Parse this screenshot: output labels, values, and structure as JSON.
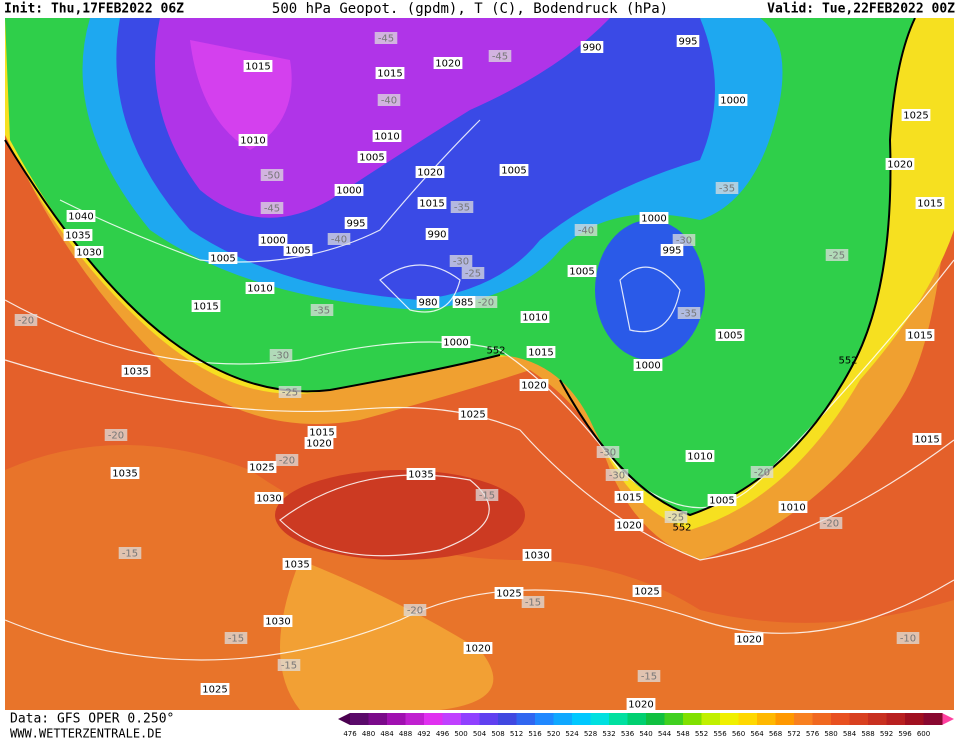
{
  "header": {
    "init": "Init: Thu,17FEB2022 06Z",
    "title": "500 hPa Geopot. (gpdm), T (C), Bodendruck (hPa)",
    "valid": "Valid: Tue,22FEB2022 00Z"
  },
  "footer": {
    "data_source": "Data: GFS OPER 0.250°",
    "website": "WWW.WETTERZENTRALE.DE"
  },
  "colorbar": {
    "levels": [
      "476",
      "480",
      "484",
      "488",
      "492",
      "496",
      "500",
      "504",
      "508",
      "512",
      "516",
      "520",
      "524",
      "528",
      "532",
      "536",
      "540",
      "544",
      "548",
      "552",
      "556",
      "560",
      "564",
      "568",
      "572",
      "576",
      "580",
      "584",
      "588",
      "592",
      "596",
      "600"
    ]
  },
  "map": {
    "pressure_labels": [
      "1015",
      "1015",
      "1020",
      "990",
      "995",
      "1000",
      "1025",
      "1010",
      "1005",
      "1010",
      "1020",
      "1005",
      "1020",
      "1015",
      "1000",
      "995",
      "1015",
      "1040",
      "1035",
      "1030",
      "1000",
      "1005",
      "990",
      "1000",
      "995",
      "1005",
      "1010",
      "1005",
      "980",
      "985",
      "1015",
      "1010",
      "1005",
      "1000",
      "1015",
      "1000",
      "1015",
      "1035",
      "1020",
      "1025",
      "1015",
      "1020",
      "1015",
      "1010",
      "1035",
      "1025",
      "1035",
      "1030",
      "1015",
      "1005",
      "1010",
      "1020",
      "1030",
      "1035",
      "1025",
      "1025",
      "1030",
      "1020",
      "1020",
      "1025",
      "1020"
    ],
    "temperature_labels": [
      "-45",
      "-45",
      "-40",
      "-50",
      "-45",
      "-40",
      "-35",
      "-40",
      "-30",
      "-30",
      "-25",
      "-20",
      "-35",
      "-35",
      "-35",
      "-25",
      "-20",
      "-30",
      "-25",
      "-20",
      "-20",
      "-15",
      "-30",
      "-30",
      "-25",
      "-20",
      "-20",
      "-15",
      "-20",
      "-15",
      "-15",
      "-15",
      "-15",
      "-10"
    ],
    "geopotential_labels": [
      "552",
      "552",
      "552"
    ]
  }
}
